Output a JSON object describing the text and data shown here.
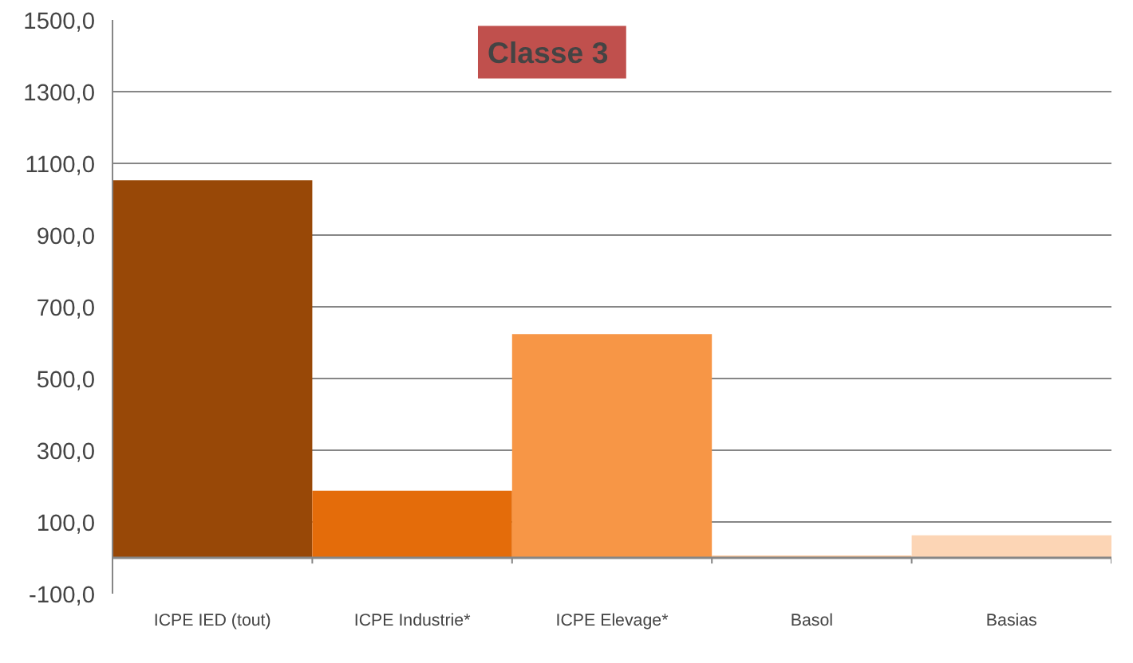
{
  "chart_data": {
    "type": "bar",
    "title": "Classe  3",
    "categories": [
      "ICPE IED (tout)",
      "ICPE Industrie*",
      "ICPE Elevage*",
      "Basol",
      "Basias"
    ],
    "values": [
      1053,
      187,
      624,
      6,
      63
    ],
    "colors": [
      "#984807",
      "#e46c0a",
      "#f79646",
      "#fac090",
      "#fcd5b5"
    ],
    "ylim": [
      -100,
      1500
    ],
    "yticks": [
      {
        "value": -100,
        "label": "-100,0"
      },
      {
        "value": 100,
        "label": "100,0"
      },
      {
        "value": 300,
        "label": "300,0"
      },
      {
        "value": 500,
        "label": "500,0"
      },
      {
        "value": 700,
        "label": "700,0"
      },
      {
        "value": 900,
        "label": "900,0"
      },
      {
        "value": 1100,
        "label": "1100,0"
      },
      {
        "value": 1300,
        "label": "1300,0"
      },
      {
        "value": 1500,
        "label": "1500,0"
      }
    ],
    "grid": "y"
  }
}
